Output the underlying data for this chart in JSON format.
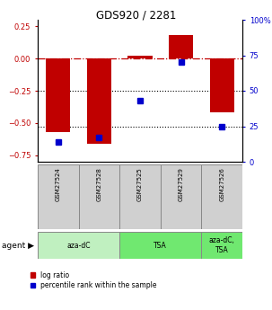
{
  "title": "GDS920 / 2281",
  "samples": [
    "GSM27524",
    "GSM27528",
    "GSM27525",
    "GSM27529",
    "GSM27526"
  ],
  "log_ratios": [
    -0.57,
    -0.66,
    0.02,
    0.18,
    -0.42
  ],
  "percentile_ranks": [
    14,
    17,
    43,
    70,
    25
  ],
  "bar_color": "#c00000",
  "dot_color": "#0000cc",
  "groups": [
    {
      "label": "aza-dC",
      "span": [
        0,
        2
      ],
      "color": "#c0f0c0"
    },
    {
      "label": "TSA",
      "span": [
        2,
        4
      ],
      "color": "#70e870"
    },
    {
      "label": "aza-dC,\nTSA",
      "span": [
        4,
        5
      ],
      "color": "#70e870"
    }
  ],
  "ylim_left": [
    -0.8,
    0.3
  ],
  "ylim_right": [
    0,
    100
  ],
  "yticks_left": [
    0.25,
    0.0,
    -0.25,
    -0.5,
    -0.75
  ],
  "yticks_right": [
    100,
    75,
    50,
    25,
    0
  ],
  "bar_width": 0.6,
  "background_color": "#ffffff",
  "sample_box_color": "#d0d0d0",
  "sample_box_edge": "#888888"
}
